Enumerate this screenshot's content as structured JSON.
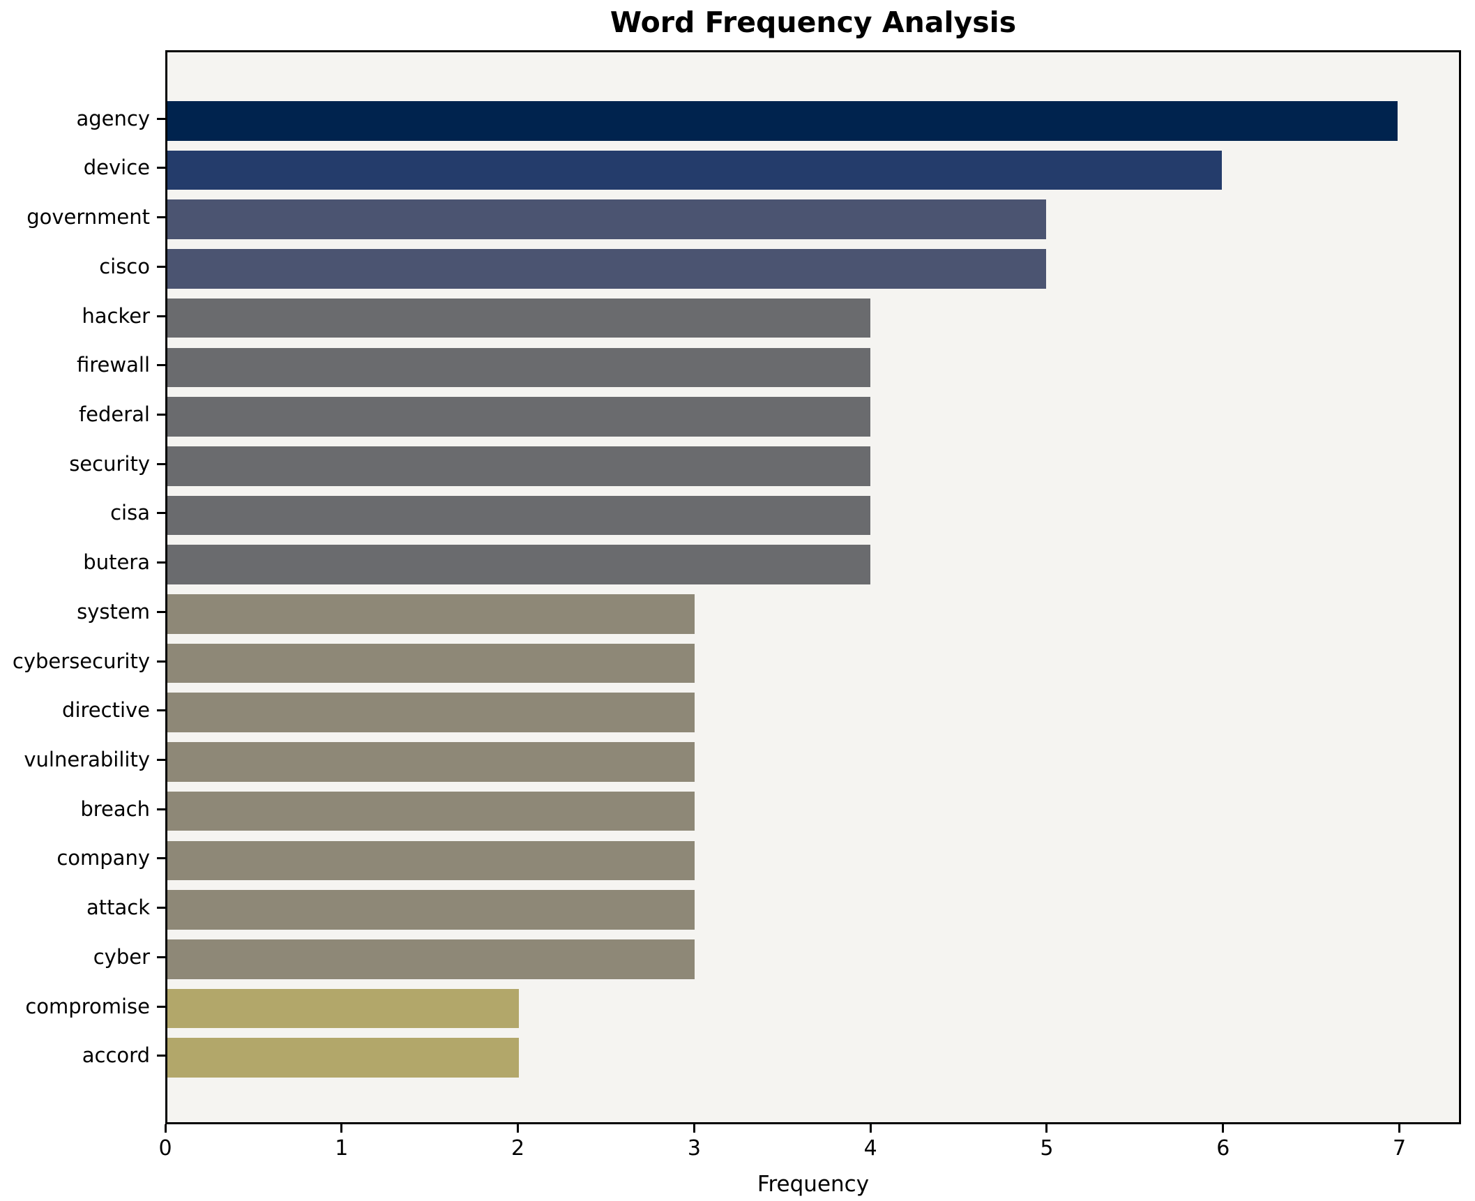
{
  "chart": {
    "title": "Word Frequency Analysis",
    "xlabel": "Frequency"
  },
  "chart_data": {
    "type": "bar",
    "orientation": "horizontal",
    "title": "Word Frequency Analysis",
    "xlabel": "Frequency",
    "ylabel": "",
    "categories": [
      "agency",
      "device",
      "government",
      "cisco",
      "hacker",
      "firewall",
      "federal",
      "security",
      "cisa",
      "butera",
      "system",
      "cybersecurity",
      "directive",
      "vulnerability",
      "breach",
      "company",
      "attack",
      "cyber",
      "compromise",
      "accord"
    ],
    "values": [
      7,
      6,
      5,
      5,
      4,
      4,
      4,
      4,
      4,
      4,
      3,
      3,
      3,
      3,
      3,
      3,
      3,
      3,
      2,
      2
    ],
    "bar_colors": [
      "#00234e",
      "#243c6b",
      "#4b5471",
      "#4b5471",
      "#6a6b6e",
      "#6a6b6e",
      "#6a6b6e",
      "#6a6b6e",
      "#6a6b6e",
      "#6a6b6e",
      "#8e8877",
      "#8e8877",
      "#8e8877",
      "#8e8877",
      "#8e8877",
      "#8e8877",
      "#8e8877",
      "#8e8877",
      "#b2a76a",
      "#b2a76a"
    ],
    "xticks": [
      0,
      1,
      2,
      3,
      4,
      5,
      6,
      7
    ],
    "xlim": [
      0,
      7.35
    ],
    "grid": false,
    "legend": "none",
    "plot_background": "#f5f4f1",
    "figure_background": "#ffffff",
    "spine_color": "#000000",
    "text_color": "#000000"
  }
}
